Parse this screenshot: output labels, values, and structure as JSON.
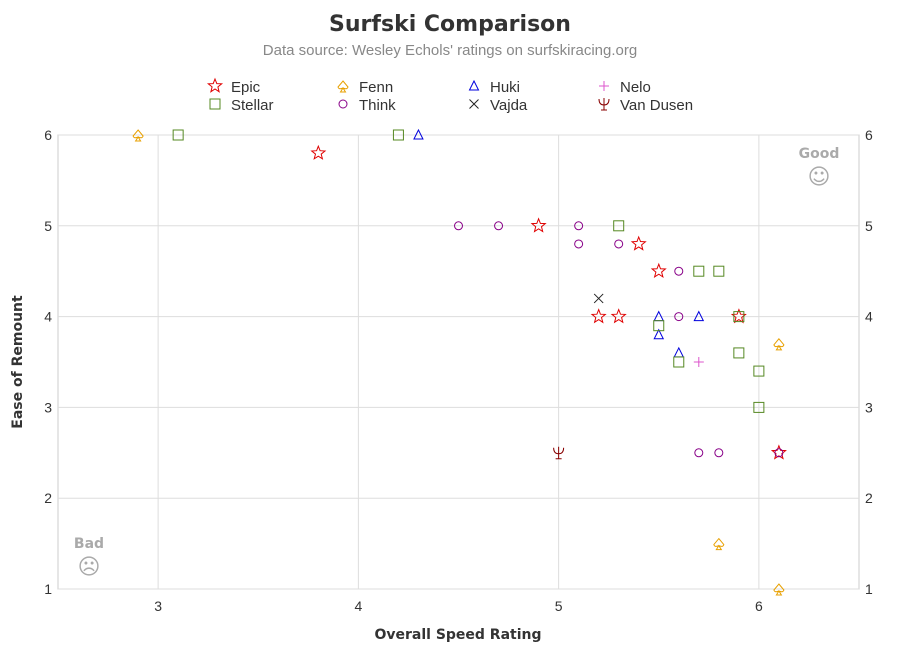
{
  "chart_data": {
    "type": "scatter",
    "title": "Surfski Comparison",
    "subtitle": "Data source: Wesley Echols' ratings on surfskiracing.org",
    "xlabel": "Overall Speed Rating",
    "ylabel": "Ease of Remount",
    "xlim": [
      2.5,
      6.5
    ],
    "ylim": [
      1,
      6
    ],
    "xticks": [
      3,
      4,
      5,
      6
    ],
    "yticks": [
      1,
      2,
      3,
      4,
      5,
      6
    ],
    "grid": true,
    "legend_position": "top",
    "annotations": [
      {
        "label": "Good",
        "symbol": "☺",
        "corner": "top-right"
      },
      {
        "label": "Bad",
        "symbol": "☹",
        "corner": "bottom-left"
      }
    ],
    "series": [
      {
        "name": "Epic",
        "marker": "star",
        "color": "#e00000",
        "points": [
          [
            3.8,
            5.8
          ],
          [
            4.9,
            5.0
          ],
          [
            5.4,
            4.8
          ],
          [
            5.5,
            4.5
          ],
          [
            5.2,
            4.0
          ],
          [
            5.3,
            4.0
          ],
          [
            5.9,
            4.0
          ],
          [
            6.1,
            2.5
          ]
        ]
      },
      {
        "name": "Fenn",
        "marker": "spade",
        "color": "#e8a000",
        "points": [
          [
            2.9,
            6.0
          ],
          [
            6.1,
            3.7
          ],
          [
            5.8,
            1.5
          ],
          [
            6.1,
            1.0
          ]
        ]
      },
      {
        "name": "Huki",
        "marker": "triangle",
        "color": "#0000dd",
        "points": [
          [
            4.3,
            6.0
          ],
          [
            5.5,
            4.0
          ],
          [
            5.7,
            4.0
          ],
          [
            5.5,
            3.8
          ],
          [
            5.6,
            3.6
          ]
        ]
      },
      {
        "name": "Nelo",
        "marker": "plus",
        "color": "#dd55cc",
        "points": [
          [
            5.7,
            3.5
          ]
        ]
      },
      {
        "name": "Stellar",
        "marker": "square",
        "color": "#558822",
        "points": [
          [
            3.1,
            6.0
          ],
          [
            4.2,
            6.0
          ],
          [
            5.3,
            5.0
          ],
          [
            5.7,
            4.5
          ],
          [
            5.8,
            4.5
          ],
          [
            5.9,
            4.0
          ],
          [
            5.5,
            3.9
          ],
          [
            5.9,
            3.6
          ],
          [
            5.6,
            3.5
          ],
          [
            6.0,
            3.4
          ],
          [
            6.0,
            3.0
          ]
        ]
      },
      {
        "name": "Think",
        "marker": "circle",
        "color": "#880088",
        "points": [
          [
            4.5,
            5.0
          ],
          [
            4.7,
            5.0
          ],
          [
            5.1,
            5.0
          ],
          [
            5.1,
            4.8
          ],
          [
            5.3,
            4.8
          ],
          [
            5.6,
            4.5
          ],
          [
            5.6,
            4.0
          ],
          [
            5.7,
            2.5
          ],
          [
            5.8,
            2.5
          ],
          [
            6.1,
            2.5
          ]
        ]
      },
      {
        "name": "Vajda",
        "marker": "x",
        "color": "#222222",
        "points": [
          [
            5.2,
            4.2
          ]
        ]
      },
      {
        "name": "Van Dusen",
        "marker": "psi",
        "color": "#880000",
        "points": [
          [
            5.0,
            2.5
          ]
        ]
      }
    ]
  }
}
